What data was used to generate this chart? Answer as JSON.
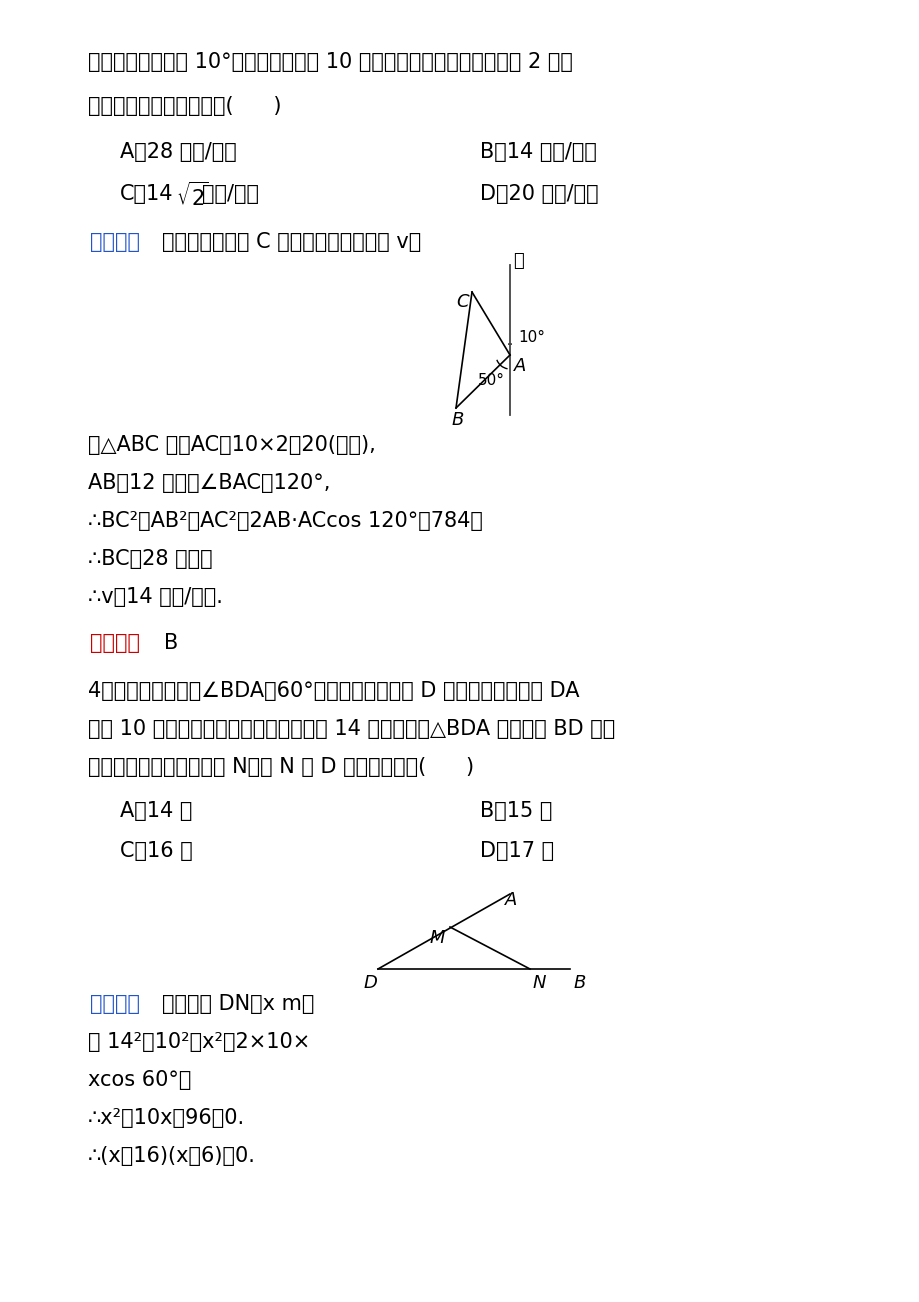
{
  "bg_color": "#ffffff",
  "text_color": "#000000",
  "blue_color": "#2255CC",
  "red_color": "#CC0000",
  "fig_width": 9.2,
  "fig_height": 13.02,
  "dpi": 100,
  "line1": "正离开岛沿北偏西 10°的方向以每小时 10 海里的速度航行，若我舰要用 2 小时",
  "line2": "追上敌舰，则速度大小为(      )",
  "opt_A1": "A．28 海里/小时",
  "opt_B1": "B．14 海里/小时",
  "opt_D1": "D．20 海里/小时",
  "jiex1_label": "【解析】",
  "jiex1_text": "如图，设我舰在 C 处追上敌舰，速度为 v，",
  "tri1_text1": "在△ABC 中，AC＝10×2＝20(海里),",
  "tri1_text2": "AB＝12 海里，∠BAC＝120°,",
  "tri1_text3": "∴BC²＝AB²＋AC²－2AB·ACcos 120°＝784，",
  "tri1_text4": "∴BC＝28 海里，",
  "tri1_text5": "∴v＝14 海里/小时.",
  "ans1_label": "【答案】",
  "ans1_text": "B",
  "q4_line1": "4．地上画了一个角∠BDA＝60°，某人从角的顶点 D 出发，沿角的一边 DA",
  "q4_line2": "行走 10 米后，拐弯往另一边的方向行走 14 米正好到达△BDA 的另一边 BD 上的",
  "q4_line3": "一点，我们将该点记为点 N，则 N 与 D 之间的距离为(      )",
  "opt_A2": "A．14 米",
  "opt_B2": "B．15 米",
  "opt_C2": "C．16 米",
  "opt_D2": "D．17 米",
  "jiex2_label": "【解析】",
  "jiex2_text": "如图，设 DN＝x m，",
  "jiex2_line2": "则 14²＝10²＋x²－2×10×",
  "jiex2_line3": "xcos 60°，",
  "jiex2_line4": "∴x²－10x－96＝0.",
  "jiex2_line5": "∴(x－16)(x＋6)＝0."
}
